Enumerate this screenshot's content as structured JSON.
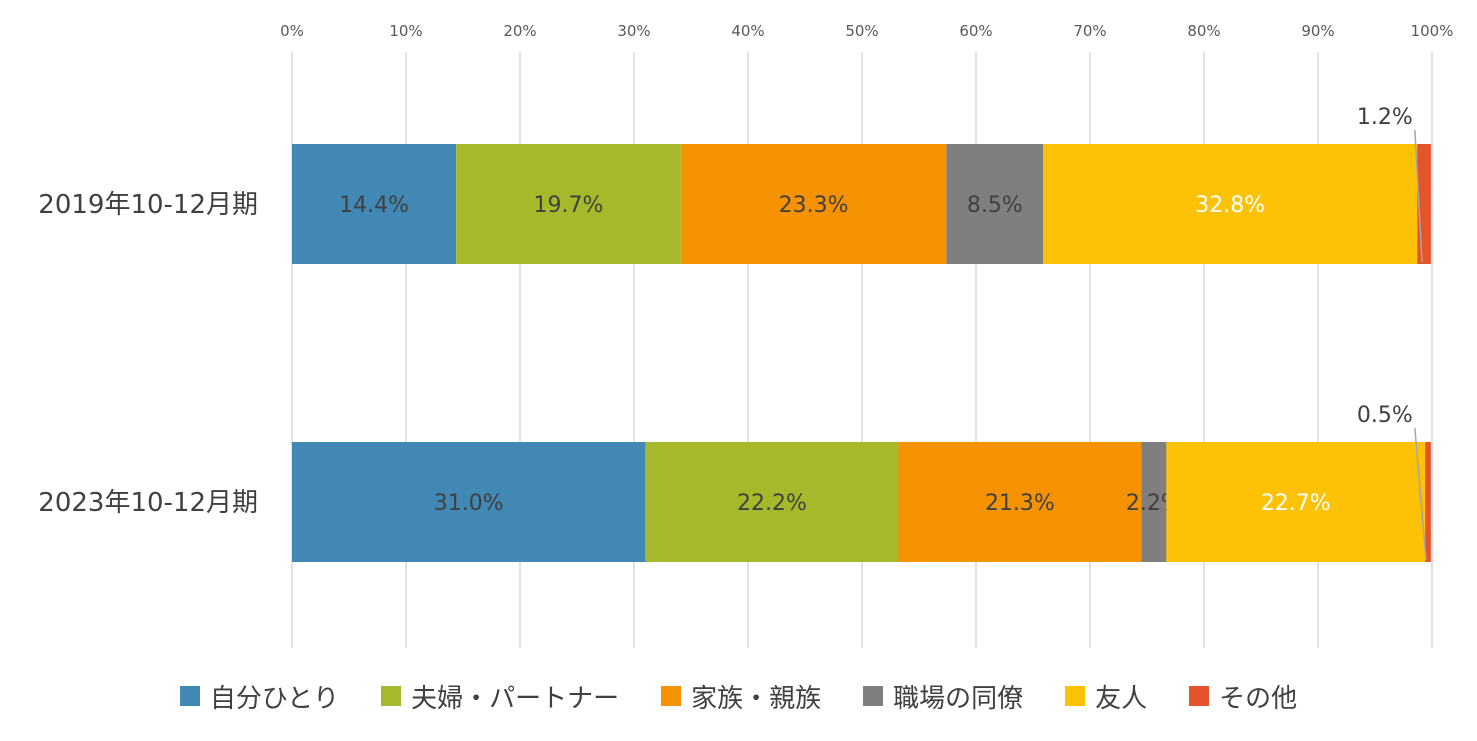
{
  "chart_data": {
    "type": "bar",
    "orientation": "horizontal",
    "stacked": "percent",
    "categories": [
      "2019年10-12月期",
      "2023年10-12月期"
    ],
    "series": [
      {
        "name": "自分ひとり",
        "color": "#4189B4",
        "values": [
          14.4,
          31.0
        ],
        "labels": [
          "14.4%",
          "31.0%"
        ]
      },
      {
        "name": "夫婦・パートナー",
        "color": "#A5B92A",
        "values": [
          19.7,
          22.2
        ],
        "labels": [
          "19.7%",
          "22.2%"
        ]
      },
      {
        "name": "家族・親族",
        "color": "#F49200",
        "values": [
          23.3,
          21.3
        ],
        "labels": [
          "23.3%",
          "21.3%"
        ]
      },
      {
        "name": "職場の同僚",
        "color": "#7F7F7F",
        "values": [
          8.5,
          2.2
        ],
        "labels": [
          "8.5%",
          "2.2%"
        ]
      },
      {
        "name": "友人",
        "color": "#FDC106",
        "values": [
          32.8,
          22.7
        ],
        "labels": [
          "32.8%",
          "22.7%"
        ]
      },
      {
        "name": "その他",
        "color": "#E5532A",
        "values": [
          1.2,
          0.5
        ],
        "labels": [
          "1.2%",
          "0.5%"
        ]
      }
    ],
    "x_ticks": [
      "0%",
      "10%",
      "20%",
      "30%",
      "40%",
      "50%",
      "60%",
      "70%",
      "80%",
      "90%",
      "100%"
    ],
    "xlim": [
      0,
      100
    ],
    "axis_position": "top",
    "grid": true,
    "legend_position": "bottom"
  }
}
